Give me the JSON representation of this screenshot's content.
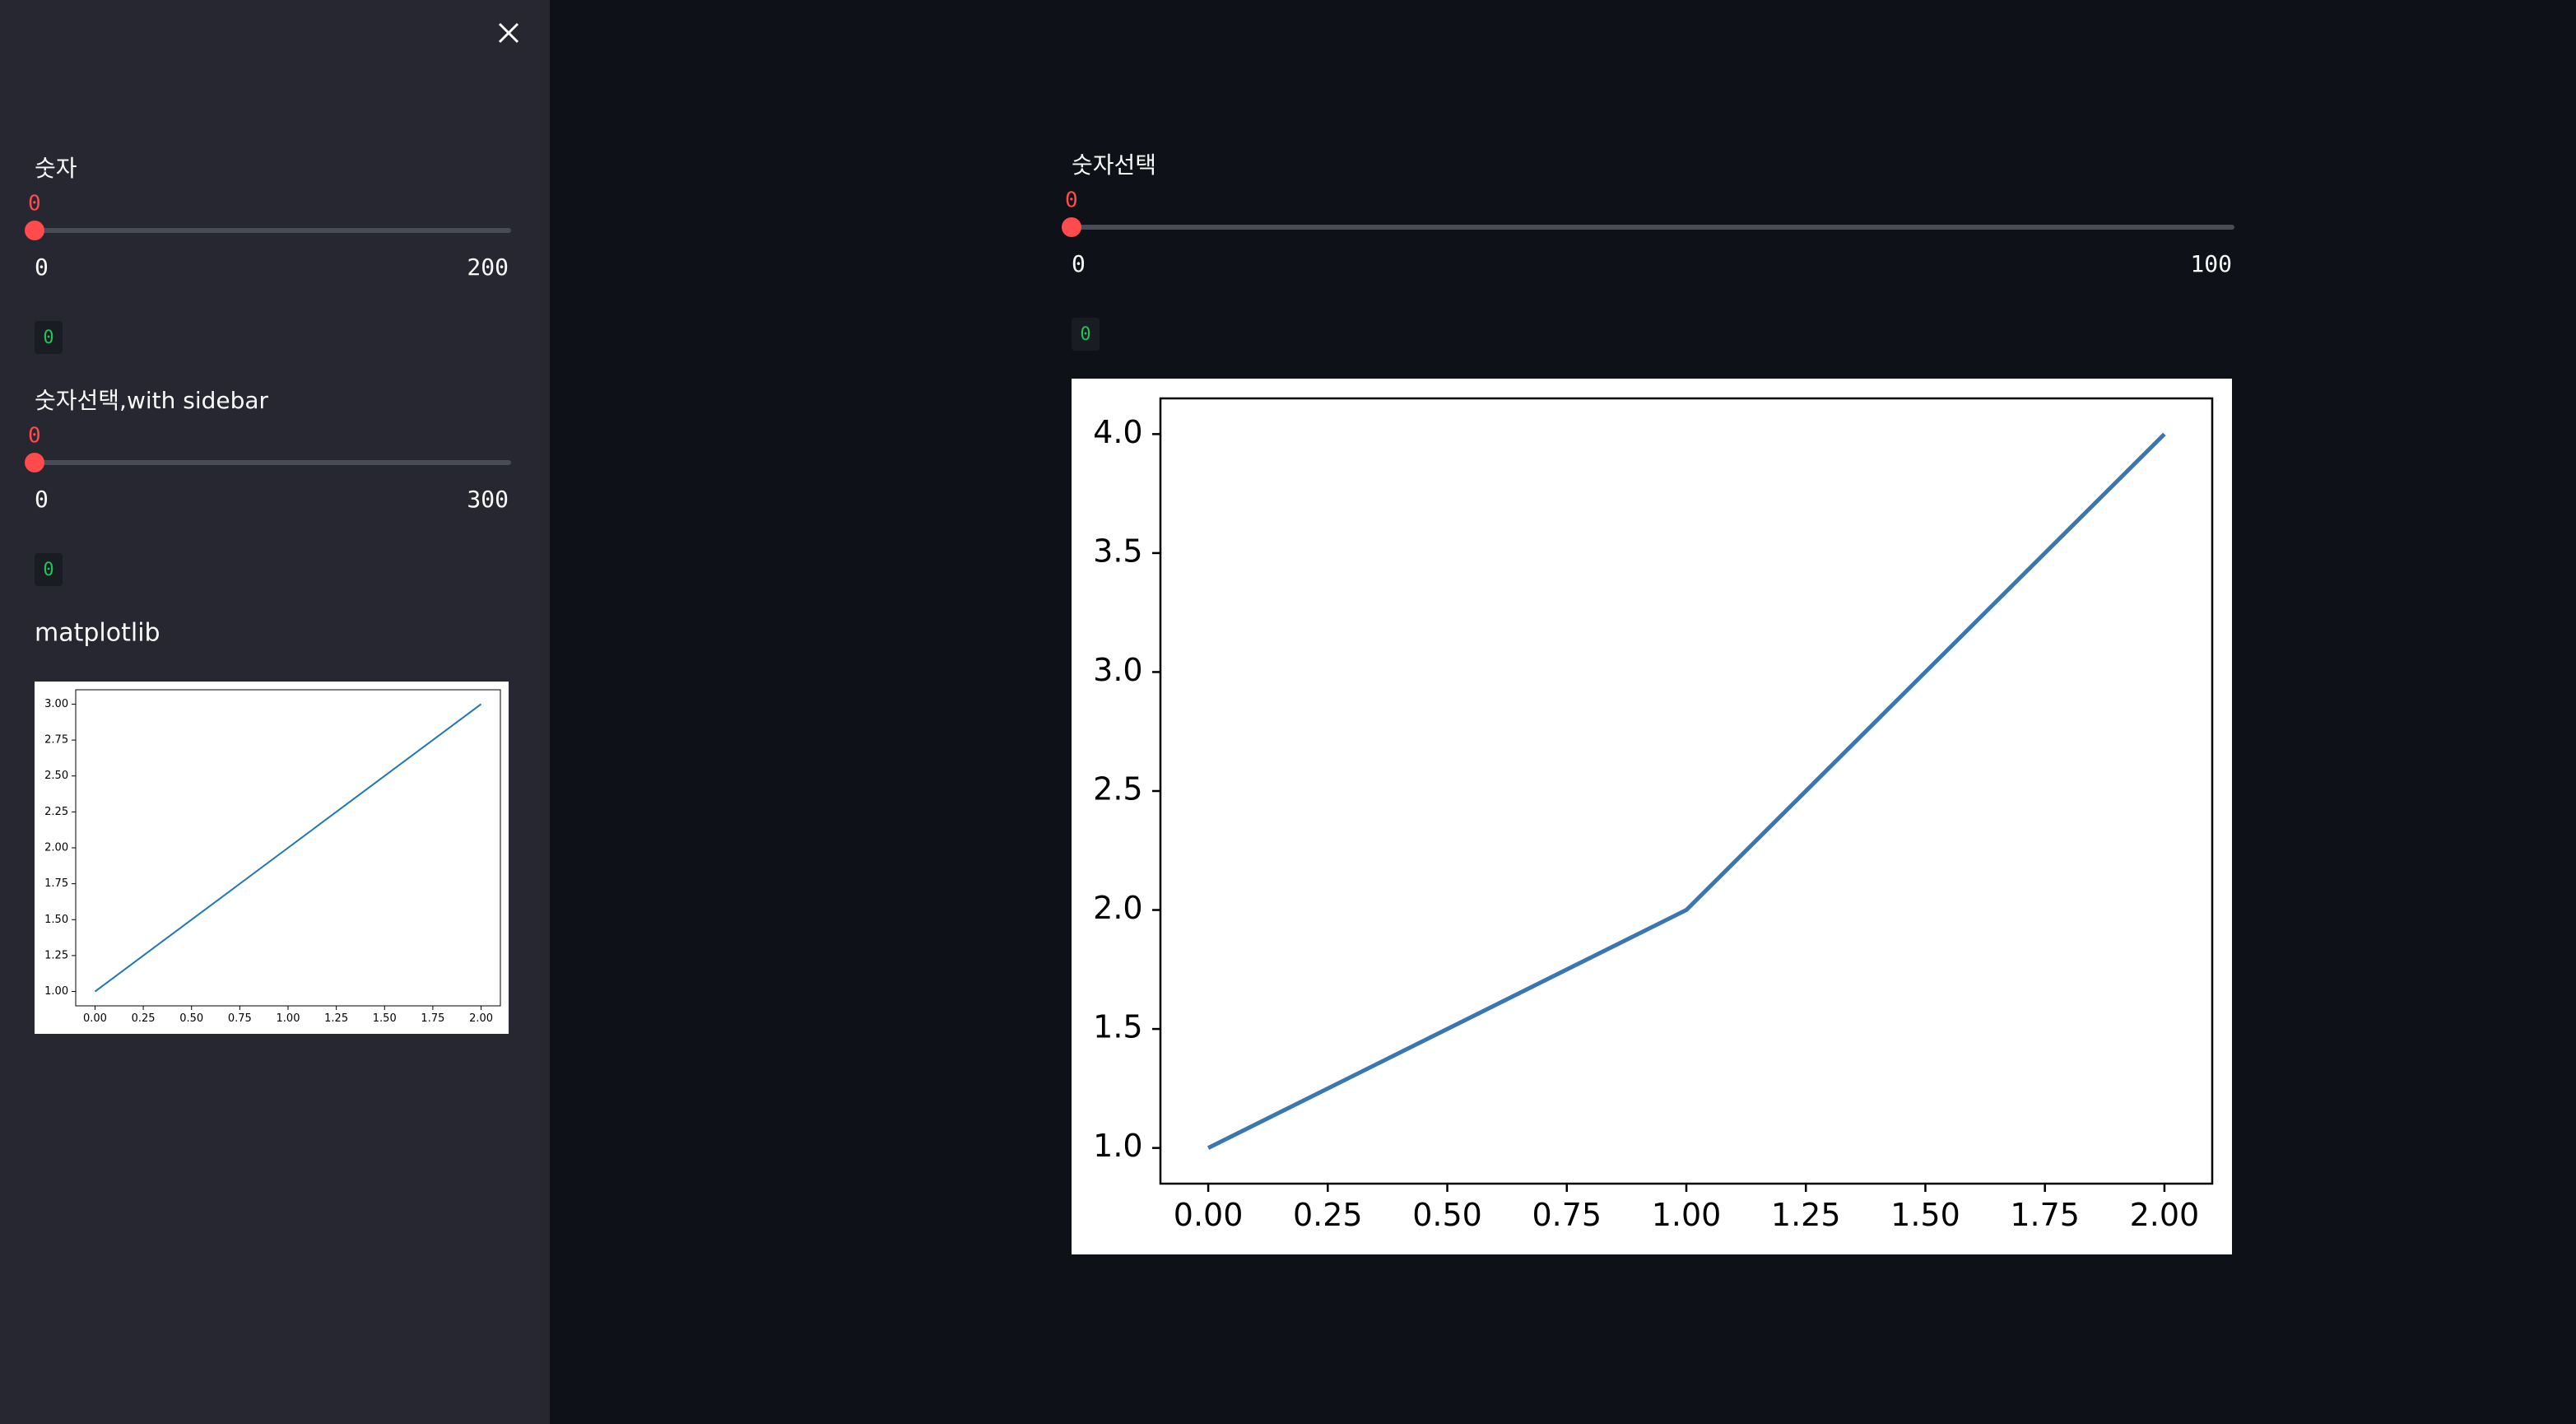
{
  "sidebar": {
    "sliders": [
      {
        "label": "숫자",
        "value": 0,
        "min": 0,
        "max": 200,
        "output": 0
      },
      {
        "label": "숫자선택,with sidebar",
        "value": 0,
        "min": 0,
        "max": 300,
        "output": 0
      }
    ],
    "subheader": "matplotlib"
  },
  "main": {
    "slider": {
      "label": "숫자선택",
      "value": 0,
      "min": 0,
      "max": 100,
      "output": 0
    }
  },
  "chart_data": [
    {
      "type": "line",
      "x": [
        0,
        1,
        2
      ],
      "series": [
        {
          "color": "#1f77b4",
          "values": [
            1,
            2,
            3
          ]
        }
      ],
      "xlim": [
        -0.1,
        2.1
      ],
      "ylim": [
        0.9,
        3.1
      ],
      "xticks": [
        {
          "value": 0,
          "label": "0.00"
        },
        0.25,
        {
          "value": 0.5,
          "label": "0.50"
        },
        0.75,
        {
          "value": 1,
          "label": "1.00"
        },
        1.25,
        {
          "value": 1.5,
          "label": "1.50"
        },
        1.75,
        {
          "value": 2,
          "label": "2.00"
        }
      ],
      "yticks": [
        {
          "value": 1,
          "label": "1.00"
        },
        1.25,
        {
          "value": 1.5,
          "label": "1.50"
        },
        1.75,
        {
          "value": 2,
          "label": "2.00"
        },
        2.25,
        {
          "value": 2.5,
          "label": "2.50"
        },
        2.75,
        {
          "value": 3,
          "label": "3.00"
        }
      ]
    },
    {
      "type": "line",
      "x": [
        0,
        1,
        2
      ],
      "series": [
        {
          "color": "#3a76af",
          "values": [
            1,
            2,
            4
          ]
        }
      ],
      "xlim": [
        -0.1,
        2.1
      ],
      "ylim": [
        0.85,
        4.15
      ],
      "xticks": [
        {
          "value": 0,
          "label": "0.00"
        },
        0.25,
        {
          "value": 0.5,
          "label": "0.50"
        },
        0.75,
        {
          "value": 1,
          "label": "1.00"
        },
        1.25,
        {
          "value": 1.5,
          "label": "1.50"
        },
        1.75,
        {
          "value": 2,
          "label": "2.00"
        }
      ],
      "yticks": [
        {
          "value": 1,
          "label": "1.0"
        },
        1.5,
        {
          "value": 2,
          "label": "2.0"
        },
        2.5,
        {
          "value": 3,
          "label": "3.0"
        },
        3.5,
        {
          "value": 4,
          "label": "4.0"
        }
      ]
    }
  ]
}
